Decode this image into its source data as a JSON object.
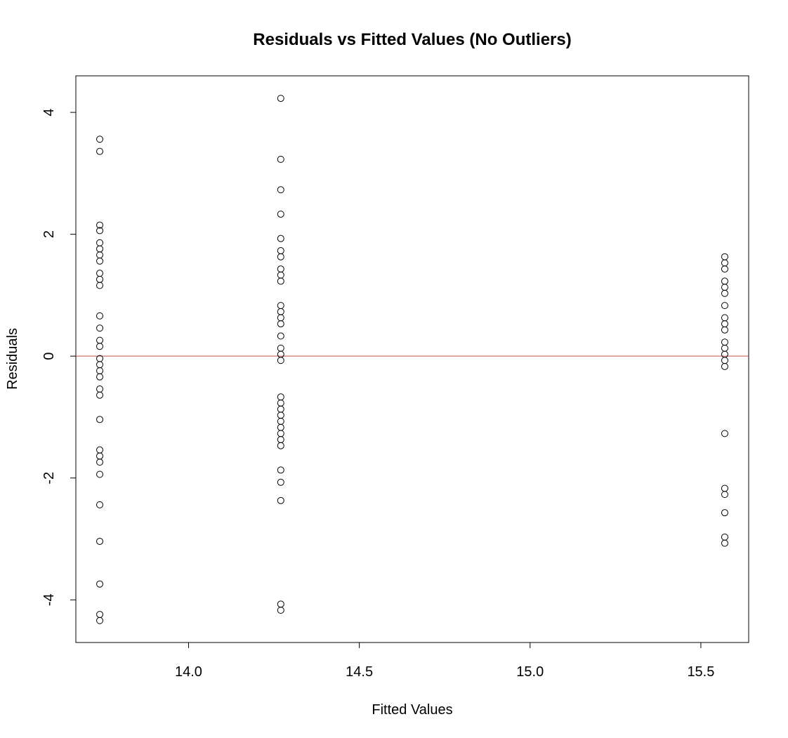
{
  "chart_data": {
    "type": "scatter",
    "title": "Residuals vs Fitted Values (No Outliers)",
    "xlabel": "Fitted Values",
    "ylabel": "Residuals",
    "xlim": [
      13.67,
      15.64
    ],
    "ylim": [
      -4.7,
      4.6
    ],
    "x_ticks": [
      {
        "value": 14.0,
        "label": "14.0"
      },
      {
        "value": 14.5,
        "label": "14.5"
      },
      {
        "value": 15.0,
        "label": "15.0"
      },
      {
        "value": 15.5,
        "label": "15.5"
      }
    ],
    "y_ticks": [
      {
        "value": -4,
        "label": "-4"
      },
      {
        "value": -2,
        "label": "-2"
      },
      {
        "value": 0,
        "label": "0"
      },
      {
        "value": 2,
        "label": "2"
      },
      {
        "value": 4,
        "label": "4"
      }
    ],
    "reference_line": {
      "y": 0,
      "color": "#c0504d"
    },
    "grid": false,
    "groups": [
      {
        "x": 13.74,
        "residuals": [
          3.56,
          3.36,
          2.15,
          2.06,
          1.86,
          1.76,
          1.66,
          1.56,
          1.36,
          1.26,
          1.16,
          0.66,
          0.46,
          0.26,
          0.16,
          -0.04,
          -0.14,
          -0.24,
          -0.34,
          -0.54,
          -0.64,
          -1.04,
          -1.54,
          -1.64,
          -1.74,
          -1.94,
          -2.44,
          -3.04,
          -3.74,
          -4.24,
          -4.34
        ]
      },
      {
        "x": 14.27,
        "residuals": [
          4.23,
          3.23,
          2.73,
          2.33,
          1.93,
          1.73,
          1.63,
          1.43,
          1.33,
          1.23,
          0.83,
          0.73,
          0.63,
          0.53,
          0.33,
          0.13,
          0.03,
          -0.07,
          -0.67,
          -0.77,
          -0.87,
          -0.97,
          -1.07,
          -1.17,
          -1.27,
          -1.37,
          -1.47,
          -1.87,
          -2.07,
          -2.37,
          -4.07,
          -4.17
        ]
      },
      {
        "x": 15.57,
        "residuals": [
          1.63,
          1.53,
          1.43,
          1.23,
          1.13,
          1.03,
          0.83,
          0.63,
          0.53,
          0.43,
          0.23,
          0.13,
          0.03,
          -0.07,
          -0.17,
          -1.27,
          -2.17,
          -2.27,
          -2.57,
          -2.97,
          -3.07
        ]
      }
    ]
  }
}
